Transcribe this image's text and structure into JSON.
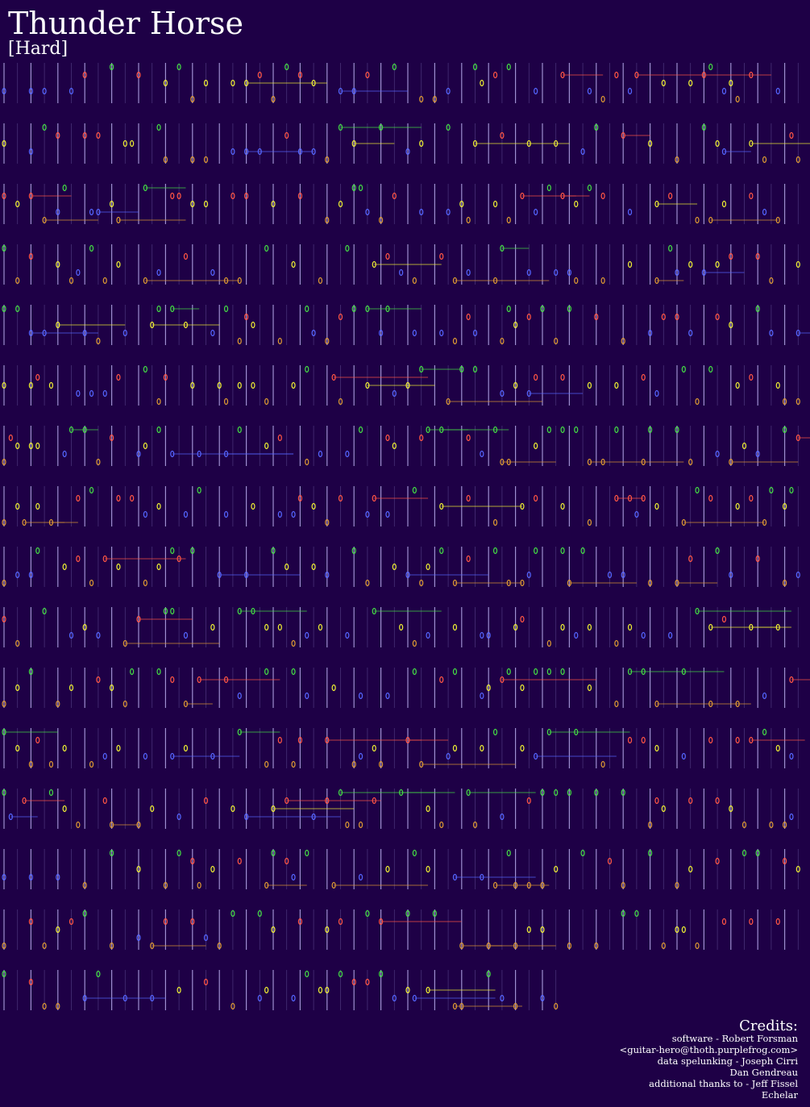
{
  "title": "Thunder Horse",
  "difficulty": "[Hard]",
  "credits": {
    "heading": "Credits:",
    "lines": [
      "software - Robert Forsman",
      "<guitar-hero@thoth.purplefrog.com>",
      "data spelunking - Joseph Cirri",
      "Dan Gendreau",
      "additional thanks to - Jeff Fissel",
      "Echelar"
    ]
  }
}
